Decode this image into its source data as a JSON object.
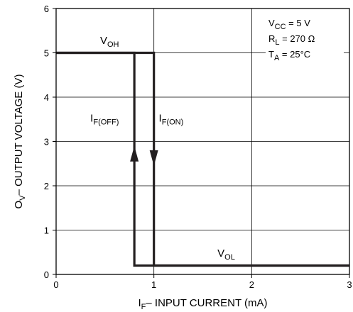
{
  "chart_data": {
    "type": "line",
    "xlabel": {
      "main": "I",
      "sub": "F",
      "rest": "– INPUT CURRENT (mA)"
    },
    "ylabel": {
      "main": "O",
      "sub": "V",
      "rest": "– OUTPUT VOLTAGE (V)"
    },
    "xlim": [
      0,
      3
    ],
    "ylim": [
      0,
      6
    ],
    "x_ticks": [
      0,
      1,
      2,
      3
    ],
    "y_ticks": [
      0,
      1,
      2,
      3,
      4,
      5,
      6
    ],
    "x_tick_labels": [
      "0",
      "1",
      "2",
      "3"
    ],
    "y_tick_labels": [
      "0",
      "1",
      "2",
      "3",
      "4",
      "5",
      "6"
    ],
    "grid": true,
    "series": [
      {
        "name": "IF(OFF)",
        "direction": "up",
        "points": [
          [
            3,
            0.2
          ],
          [
            0.8,
            0.2
          ],
          [
            0.8,
            5
          ],
          [
            0,
            5
          ]
        ]
      },
      {
        "name": "IF(ON)",
        "direction": "down",
        "points": [
          [
            0,
            5
          ],
          [
            1,
            5
          ],
          [
            1,
            0.2
          ],
          [
            3,
            0.2
          ]
        ]
      }
    ],
    "annotations": [
      {
        "id": "voh",
        "main": "V",
        "sub": "OH",
        "x": 0.45,
        "y": 5.2
      },
      {
        "id": "vol",
        "main": "V",
        "sub": "OL",
        "x": 1.65,
        "y": 0.4
      },
      {
        "id": "if_off",
        "main": "I",
        "sub": "F(OFF)",
        "x": 0.35,
        "y": 3.45
      },
      {
        "id": "if_on",
        "main": "I",
        "sub": "F(ON)",
        "x": 1.05,
        "y": 3.45
      }
    ],
    "conditions": [
      {
        "main": "V",
        "sub": "CC",
        "rest": "  = 5 V"
      },
      {
        "main": "R",
        "sub": "L",
        "rest": " = 270 Ω"
      },
      {
        "main": "T",
        "sub": "A",
        "rest": " = 25°C"
      }
    ],
    "colors": {
      "line": "#231f20",
      "grid": "#000000",
      "background": "#ffffff"
    }
  }
}
